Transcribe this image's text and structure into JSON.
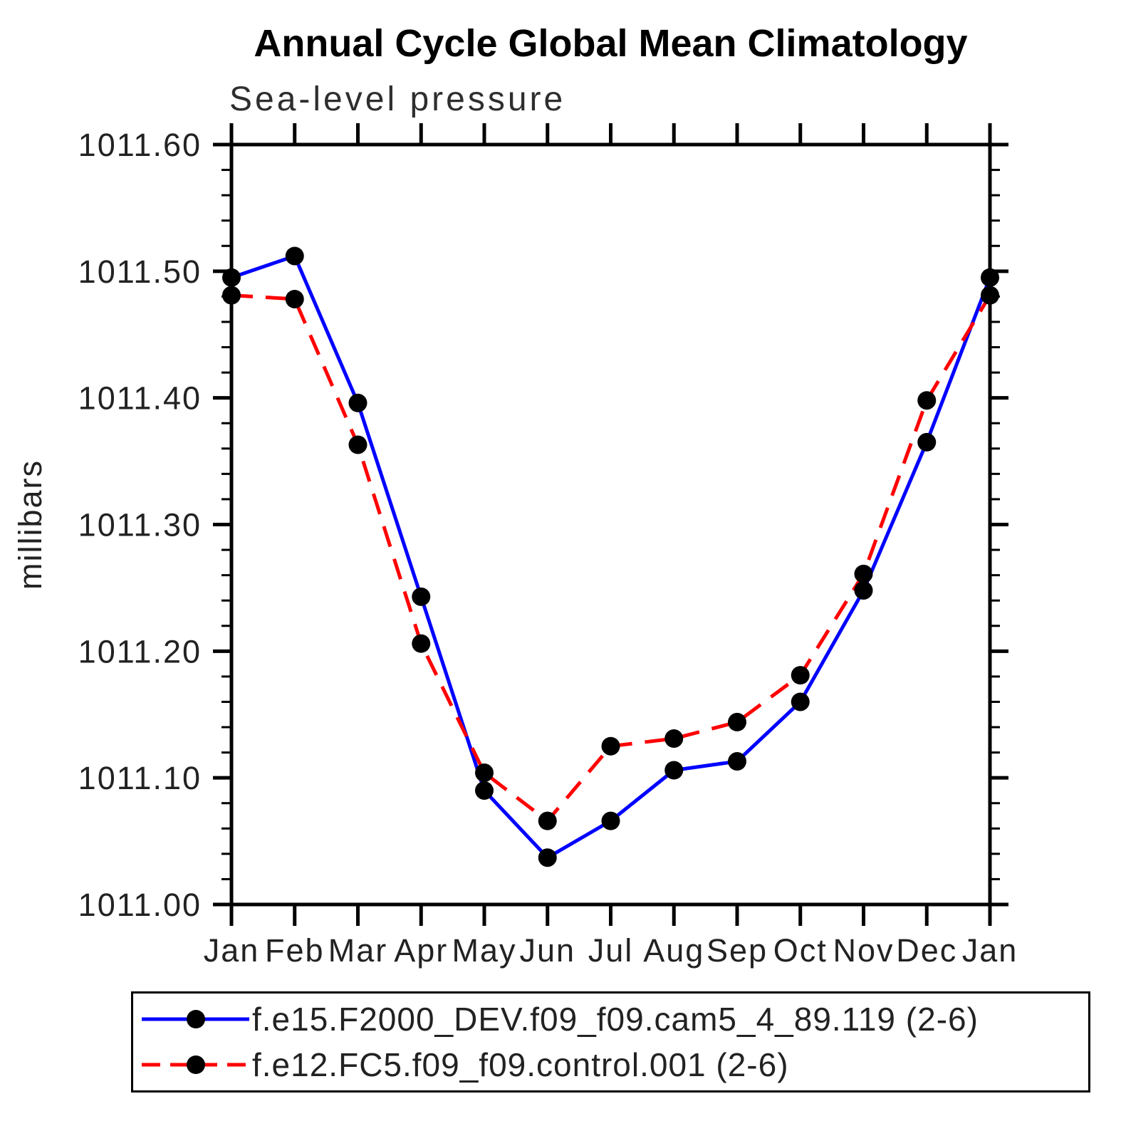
{
  "title": "Annual Cycle Global Mean Climatology",
  "subtitle": "Sea-level pressure",
  "legend": {
    "items": [
      {
        "label": "f.e15.F2000_DEV.f09_f09.cam5_4_89.119 (2-6)"
      },
      {
        "label": "f.e12.FC5.f09_f09.control.001 (2-6)"
      }
    ]
  },
  "colors": {
    "series1": "#0000ff",
    "series2": "#ff0000",
    "marker": "#000000",
    "axis": "#000000",
    "text": "#222222"
  },
  "chart_data": {
    "type": "line",
    "title": "Annual Cycle Global Mean Climatology",
    "subtitle": "Sea-level pressure",
    "xlabel": "",
    "ylabel": "millibars",
    "x_tick_labels": [
      "Jan",
      "Feb",
      "Mar",
      "Apr",
      "May",
      "Jun",
      "Jul",
      "Aug",
      "Sep",
      "Oct",
      "Nov",
      "Dec",
      "Jan"
    ],
    "ylim": [
      1011.0,
      1011.6
    ],
    "y_major_step": 0.1,
    "y_minor_step": 0.02,
    "grid": "off",
    "legend_position": "bottom",
    "series": [
      {
        "name": "f.e15.F2000_DEV.f09_f09.cam5_4_89.119 (2-6)",
        "color": "#0000ff",
        "style": "solid",
        "marker": "circle",
        "marker_color": "#000000",
        "values": [
          1011.495,
          1011.512,
          1011.396,
          1011.243,
          1011.09,
          1011.037,
          1011.066,
          1011.106,
          1011.113,
          1011.16,
          1011.248,
          1011.365,
          1011.495
        ]
      },
      {
        "name": "f.e12.FC5.f09_f09.control.001 (2-6)",
        "color": "#ff0000",
        "style": "dashed",
        "marker": "circle",
        "marker_color": "#000000",
        "values": [
          1011.481,
          1011.478,
          1011.363,
          1011.206,
          1011.104,
          1011.066,
          1011.125,
          1011.131,
          1011.144,
          1011.181,
          1011.261,
          1011.398,
          1011.481
        ]
      }
    ]
  }
}
